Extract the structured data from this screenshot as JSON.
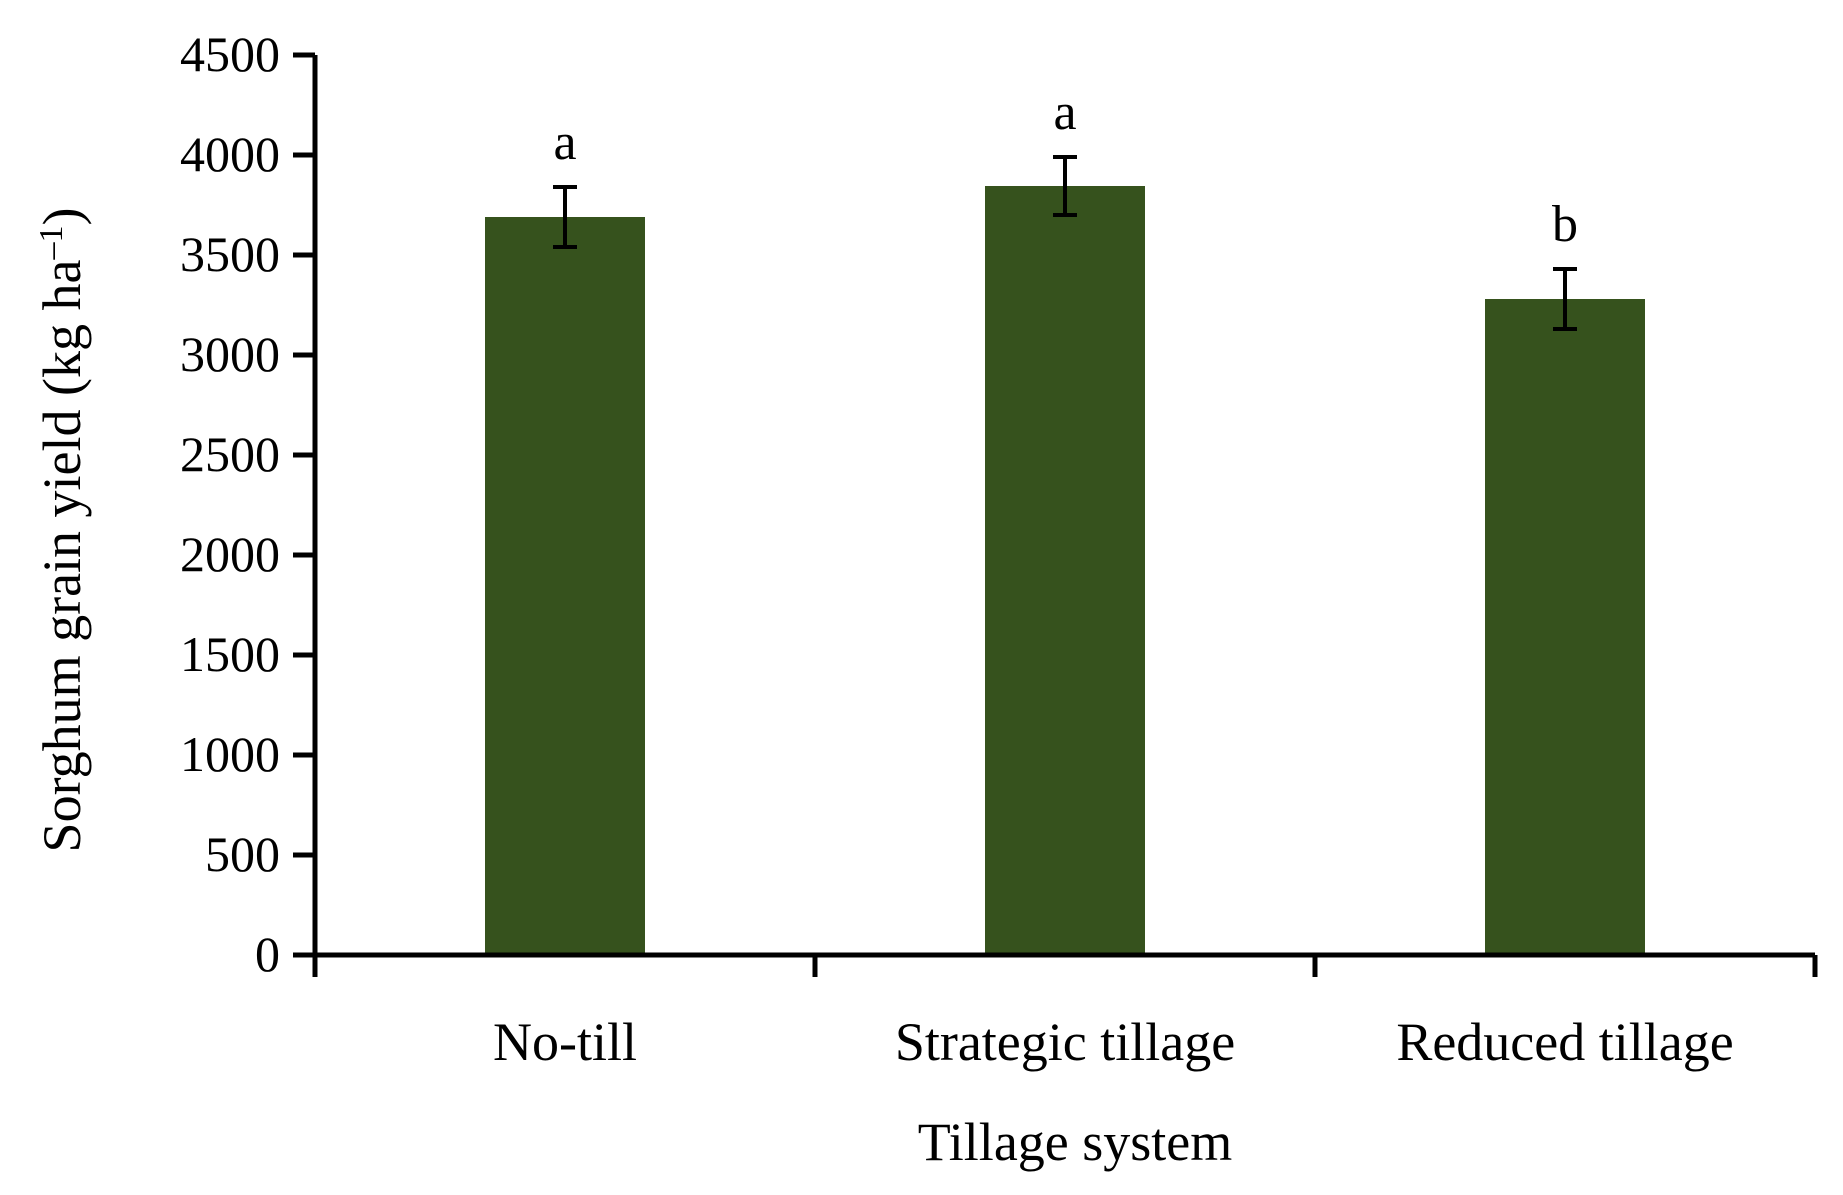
{
  "chart_data": {
    "type": "bar",
    "title": "",
    "xlabel": "Tillage system",
    "ylabel": "Sorghum grain yield (kg ha",
    "ylabel_sup": "–1",
    "ylabel_close": ")",
    "categories": [
      "No-till",
      "Strategic tillage",
      "Reduced tillage"
    ],
    "values": [
      3690,
      3845,
      3280
    ],
    "error": [
      150,
      145,
      150
    ],
    "significance_letters": [
      "a",
      "a",
      "b"
    ],
    "ylim": [
      0,
      4500
    ],
    "yticks": [
      "0",
      "500",
      "1000",
      "1500",
      "2000",
      "2500",
      "3000",
      "3500",
      "4000",
      "4500"
    ],
    "grid": false,
    "legend": "none",
    "bar_color": "#36521d"
  }
}
